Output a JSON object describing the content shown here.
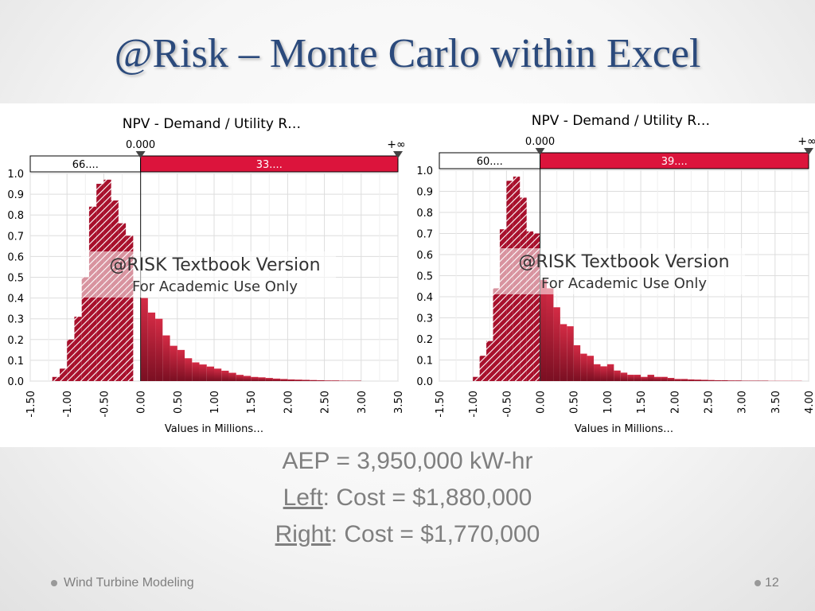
{
  "slide": {
    "title": "@Risk – Monte Carlo within Excel",
    "footer_text": "Wind Turbine Modeling",
    "page_number": "12"
  },
  "info": {
    "line1": "AEP = 3,950,000 kW-hr",
    "left_label": "Left",
    "left_value": ": Cost = $1,880,000",
    "right_label": "Right",
    "right_value": ": Cost = $1,770,000"
  },
  "colors": {
    "title": "#2b4a7c",
    "bar_dark": "#7a0f22",
    "bar_light": "#d42b45",
    "band_red": "#dc143c",
    "text_gray": "#7f7f7f"
  },
  "watermark": {
    "line1": "@RISK Textbook Version",
    "line2": "For Academic Use Only"
  },
  "chart_data": [
    {
      "type": "bar",
      "title": "NPV - Demand / Utility R…",
      "xlabel": "Values in Millions…",
      "ylabel": "",
      "xlim": [
        -1.5,
        3.5
      ],
      "ylim": [
        0,
        1.0
      ],
      "x_ticks": [
        "-1.50",
        "-1.00",
        "-0.50",
        "0.00",
        "0.50",
        "1.00",
        "1.50",
        "2.00",
        "2.50",
        "3.00",
        "3.50"
      ],
      "y_ticks": [
        "1.0",
        "0.9",
        "0.8",
        "0.7",
        "0.6",
        "0.5",
        "0.4",
        "0.3",
        "0.2",
        "0.1",
        "0.0"
      ],
      "delimiter": {
        "value": 0.0,
        "left_label": "0.000",
        "right_label": "+∞"
      },
      "bands": {
        "left": "66....",
        "right": "33...."
      },
      "bin_width": 0.1,
      "bins": [
        {
          "x": -1.2,
          "y": 0.02
        },
        {
          "x": -1.1,
          "y": 0.06
        },
        {
          "x": -1.0,
          "y": 0.2
        },
        {
          "x": -0.9,
          "y": 0.31
        },
        {
          "x": -0.8,
          "y": 0.5
        },
        {
          "x": -0.7,
          "y": 0.84
        },
        {
          "x": -0.6,
          "y": 0.95
        },
        {
          "x": -0.5,
          "y": 0.97
        },
        {
          "x": -0.4,
          "y": 0.87
        },
        {
          "x": -0.3,
          "y": 0.76
        },
        {
          "x": -0.2,
          "y": 0.7
        },
        {
          "x": 0.0,
          "y": 0.4
        },
        {
          "x": 0.1,
          "y": 0.33
        },
        {
          "x": 0.2,
          "y": 0.3
        },
        {
          "x": 0.3,
          "y": 0.22
        },
        {
          "x": 0.4,
          "y": 0.17
        },
        {
          "x": 0.5,
          "y": 0.15
        },
        {
          "x": 0.6,
          "y": 0.11
        },
        {
          "x": 0.7,
          "y": 0.09
        },
        {
          "x": 0.8,
          "y": 0.08
        },
        {
          "x": 0.9,
          "y": 0.07
        },
        {
          "x": 1.0,
          "y": 0.06
        },
        {
          "x": 1.1,
          "y": 0.05
        },
        {
          "x": 1.2,
          "y": 0.04
        },
        {
          "x": 1.3,
          "y": 0.03
        },
        {
          "x": 1.4,
          "y": 0.025
        },
        {
          "x": 1.5,
          "y": 0.02
        },
        {
          "x": 1.6,
          "y": 0.018
        },
        {
          "x": 1.7,
          "y": 0.015
        },
        {
          "x": 1.8,
          "y": 0.012
        },
        {
          "x": 1.9,
          "y": 0.01
        },
        {
          "x": 2.0,
          "y": 0.008
        },
        {
          "x": 2.1,
          "y": 0.007
        },
        {
          "x": 2.2,
          "y": 0.006
        },
        {
          "x": 2.3,
          "y": 0.005
        },
        {
          "x": 2.4,
          "y": 0.004
        },
        {
          "x": 2.5,
          "y": 0.003
        },
        {
          "x": 2.6,
          "y": 0.003
        },
        {
          "x": 2.7,
          "y": 0.002
        },
        {
          "x": 2.8,
          "y": 0.002
        },
        {
          "x": 2.9,
          "y": 0.002
        }
      ]
    },
    {
      "type": "bar",
      "title": "NPV - Demand / Utility R…",
      "xlabel": "Values in Millions…",
      "ylabel": "",
      "xlim": [
        -1.5,
        4.0
      ],
      "ylim": [
        0,
        1.0
      ],
      "x_ticks": [
        "-1.50",
        "-1.00",
        "-0.50",
        "0.00",
        "0.50",
        "1.00",
        "1.50",
        "2.00",
        "2.50",
        "3.00",
        "3.50",
        "4.00"
      ],
      "y_ticks": [
        "1.0",
        "0.9",
        "0.8",
        "0.7",
        "0.6",
        "0.5",
        "0.4",
        "0.3",
        "0.2",
        "0.1",
        "0.0"
      ],
      "delimiter": {
        "value": 0.0,
        "left_label": "0.000",
        "right_label": "+∞"
      },
      "bands": {
        "left": "60....",
        "right": "39...."
      },
      "bin_width": 0.1,
      "bins": [
        {
          "x": -1.0,
          "y": 0.02
        },
        {
          "x": -0.9,
          "y": 0.12
        },
        {
          "x": -0.8,
          "y": 0.19
        },
        {
          "x": -0.7,
          "y": 0.44
        },
        {
          "x": -0.6,
          "y": 0.72
        },
        {
          "x": -0.5,
          "y": 0.95
        },
        {
          "x": -0.4,
          "y": 0.97
        },
        {
          "x": -0.3,
          "y": 0.87
        },
        {
          "x": -0.2,
          "y": 0.71
        },
        {
          "x": -0.1,
          "y": 0.7
        },
        {
          "x": 0.0,
          "y": 0.48
        },
        {
          "x": 0.1,
          "y": 0.44
        },
        {
          "x": 0.2,
          "y": 0.35
        },
        {
          "x": 0.3,
          "y": 0.27
        },
        {
          "x": 0.4,
          "y": 0.26
        },
        {
          "x": 0.5,
          "y": 0.17
        },
        {
          "x": 0.6,
          "y": 0.13
        },
        {
          "x": 0.7,
          "y": 0.12
        },
        {
          "x": 0.8,
          "y": 0.08
        },
        {
          "x": 0.9,
          "y": 0.07
        },
        {
          "x": 1.0,
          "y": 0.08
        },
        {
          "x": 1.1,
          "y": 0.05
        },
        {
          "x": 1.2,
          "y": 0.04
        },
        {
          "x": 1.3,
          "y": 0.03
        },
        {
          "x": 1.4,
          "y": 0.03
        },
        {
          "x": 1.5,
          "y": 0.02
        },
        {
          "x": 1.6,
          "y": 0.03
        },
        {
          "x": 1.7,
          "y": 0.02
        },
        {
          "x": 1.8,
          "y": 0.02
        },
        {
          "x": 1.9,
          "y": 0.015
        },
        {
          "x": 2.0,
          "y": 0.01
        },
        {
          "x": 2.1,
          "y": 0.01
        },
        {
          "x": 2.2,
          "y": 0.008
        },
        {
          "x": 2.3,
          "y": 0.007
        },
        {
          "x": 2.4,
          "y": 0.006
        },
        {
          "x": 2.5,
          "y": 0.005
        },
        {
          "x": 2.6,
          "y": 0.004
        },
        {
          "x": 2.7,
          "y": 0.004
        },
        {
          "x": 2.8,
          "y": 0.003
        },
        {
          "x": 2.9,
          "y": 0.003
        },
        {
          "x": 3.0,
          "y": 0.002
        },
        {
          "x": 3.1,
          "y": 0.002
        },
        {
          "x": 3.2,
          "y": 0.002
        },
        {
          "x": 3.3,
          "y": 0.002
        },
        {
          "x": 3.4,
          "y": 0.001
        },
        {
          "x": 3.5,
          "y": 0.001
        },
        {
          "x": 3.6,
          "y": 0.001
        },
        {
          "x": 3.7,
          "y": 0.001
        },
        {
          "x": 3.8,
          "y": 0.001
        }
      ]
    }
  ]
}
